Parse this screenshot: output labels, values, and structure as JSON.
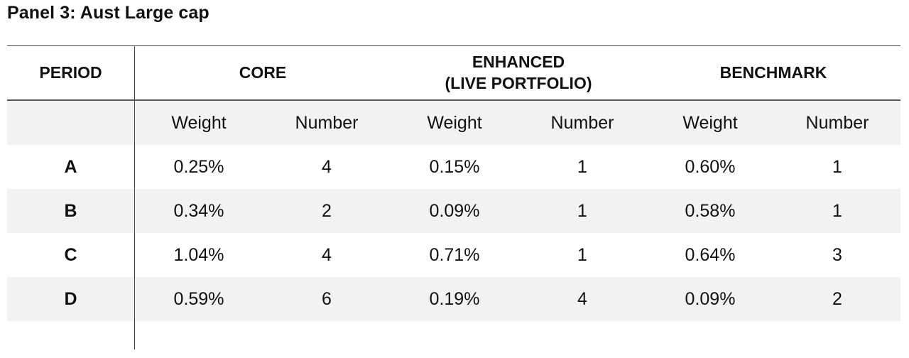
{
  "title": "Panel 3: Aust Large cap",
  "headers": {
    "period": "PERIOD",
    "core": "CORE",
    "enhanced_line1": "ENHANCED",
    "enhanced_line2": "(LIVE PORTFOLIO)",
    "benchmark": "BENCHMARK"
  },
  "subheaders": [
    "Weight",
    "Number",
    "Weight",
    "Number",
    "Weight",
    "Number"
  ],
  "rows": [
    {
      "period": "A",
      "core_weight": "0.25%",
      "core_number": "4",
      "enh_weight": "0.15%",
      "enh_number": "1",
      "bench_weight": "0.60%",
      "bench_number": "1"
    },
    {
      "period": "B",
      "core_weight": "0.34%",
      "core_number": "2",
      "enh_weight": "0.09%",
      "enh_number": "1",
      "bench_weight": "0.58%",
      "bench_number": "1"
    },
    {
      "period": "C",
      "core_weight": "1.04%",
      "core_number": "4",
      "enh_weight": "0.71%",
      "enh_number": "1",
      "bench_weight": "0.64%",
      "bench_number": "3"
    },
    {
      "period": "D",
      "core_weight": "0.59%",
      "core_number": "6",
      "enh_weight": "0.19%",
      "enh_number": "4",
      "bench_weight": "0.09%",
      "bench_number": "2"
    }
  ],
  "colors": {
    "shade": "#f2f2f2",
    "rule": "#444444"
  }
}
